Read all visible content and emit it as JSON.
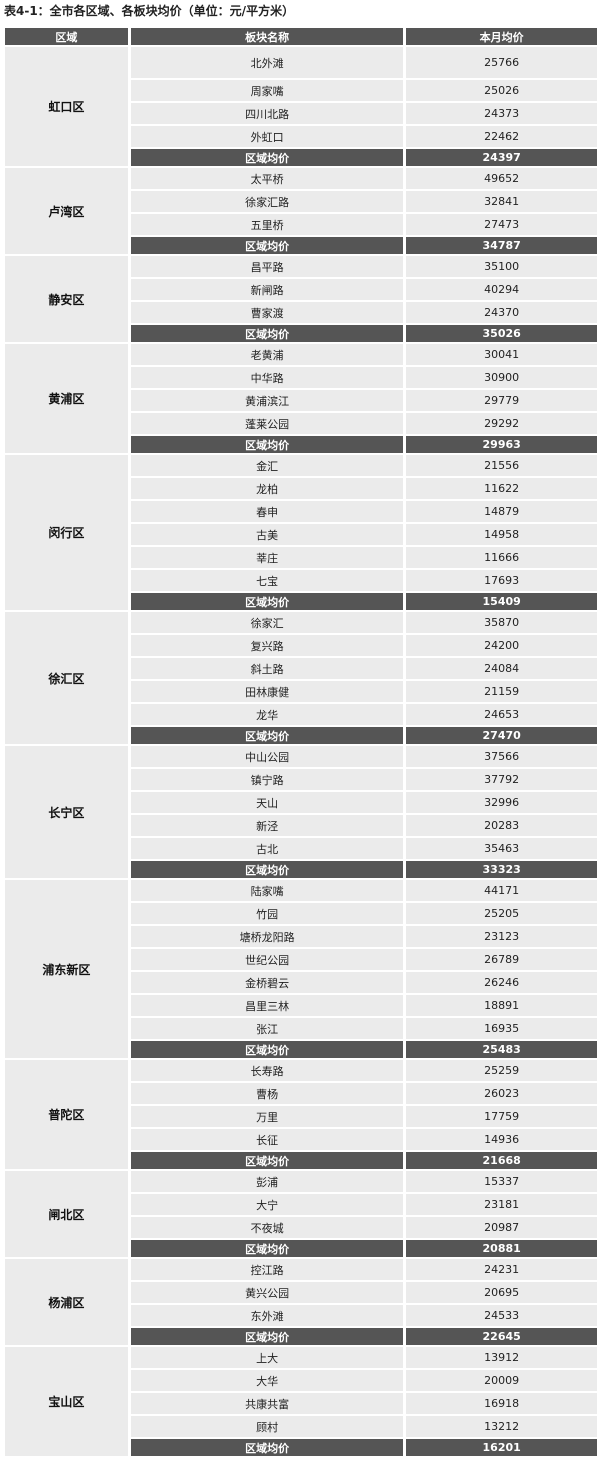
{
  "title": "表4-1：全市各区域、各板块均价（单位：元/平方米）",
  "headers": [
    "区域",
    "板块名称",
    "本月均价"
  ],
  "avg_label": "区域均价",
  "colors": {
    "header_bg": "#555555",
    "cell_bg": "#ebebeb",
    "header_text": "#ffffff"
  },
  "districts": [
    {
      "name": "虹口区",
      "blocks": [
        [
          "北外滩",
          "25766"
        ],
        [
          "周家嘴",
          "25026"
        ],
        [
          "四川北路",
          "24373"
        ],
        [
          "外虹口",
          "22462"
        ]
      ],
      "avg": "24397"
    },
    {
      "name": "卢湾区",
      "blocks": [
        [
          "太平桥",
          "49652"
        ],
        [
          "徐家汇路",
          "32841"
        ],
        [
          "五里桥",
          "27473"
        ]
      ],
      "avg": "34787"
    },
    {
      "name": "静安区",
      "blocks": [
        [
          "昌平路",
          "35100"
        ],
        [
          "新闸路",
          "40294"
        ],
        [
          "曹家渡",
          "24370"
        ]
      ],
      "avg": "35026"
    },
    {
      "name": "黄浦区",
      "blocks": [
        [
          "老黄浦",
          "30041"
        ],
        [
          "中华路",
          "30900"
        ],
        [
          "黄浦滨江",
          "29779"
        ],
        [
          "蓬莱公园",
          "29292"
        ]
      ],
      "avg": "29963"
    },
    {
      "name": "闵行区",
      "blocks": [
        [
          "金汇",
          "21556"
        ],
        [
          "龙柏",
          "11622"
        ],
        [
          "春申",
          "14879"
        ],
        [
          "古美",
          "14958"
        ],
        [
          "莘庄",
          "11666"
        ],
        [
          "七宝",
          "17693"
        ]
      ],
      "avg": "15409"
    },
    {
      "name": "徐汇区",
      "blocks": [
        [
          "徐家汇",
          "35870"
        ],
        [
          "复兴路",
          "24200"
        ],
        [
          "斜土路",
          "24084"
        ],
        [
          "田林康健",
          "21159"
        ],
        [
          "龙华",
          "24653"
        ]
      ],
      "avg": "27470"
    },
    {
      "name": "长宁区",
      "blocks": [
        [
          "中山公园",
          "37566"
        ],
        [
          "镇宁路",
          "37792"
        ],
        [
          "天山",
          "32996"
        ],
        [
          "新泾",
          "20283"
        ],
        [
          "古北",
          "35463"
        ]
      ],
      "avg": "33323"
    },
    {
      "name": "浦东新区",
      "blocks": [
        [
          "陆家嘴",
          "44171"
        ],
        [
          "竹园",
          "25205"
        ],
        [
          "塘桥龙阳路",
          "23123"
        ],
        [
          "世纪公园",
          "26789"
        ],
        [
          "金桥碧云",
          "26246"
        ],
        [
          "昌里三林",
          "18891"
        ],
        [
          "张江",
          "16935"
        ]
      ],
      "avg": "25483"
    },
    {
      "name": "普陀区",
      "blocks": [
        [
          "长寿路",
          "25259"
        ],
        [
          "曹杨",
          "26023"
        ],
        [
          "万里",
          "17759"
        ],
        [
          "长征",
          "14936"
        ]
      ],
      "avg": "21668"
    },
    {
      "name": "闸北区",
      "blocks": [
        [
          "彭浦",
          "15337"
        ],
        [
          "大宁",
          "23181"
        ],
        [
          "不夜城",
          "20987"
        ]
      ],
      "avg": "20881"
    },
    {
      "name": "杨浦区",
      "blocks": [
        [
          "控江路",
          "24231"
        ],
        [
          "黄兴公园",
          "20695"
        ],
        [
          "东外滩",
          "24533"
        ]
      ],
      "avg": "22645"
    },
    {
      "name": "宝山区",
      "blocks": [
        [
          "上大",
          "13912"
        ],
        [
          "大华",
          "20009"
        ],
        [
          "共康共富",
          "16918"
        ],
        [
          "顾村",
          "13212"
        ]
      ],
      "avg": "16201"
    }
  ]
}
